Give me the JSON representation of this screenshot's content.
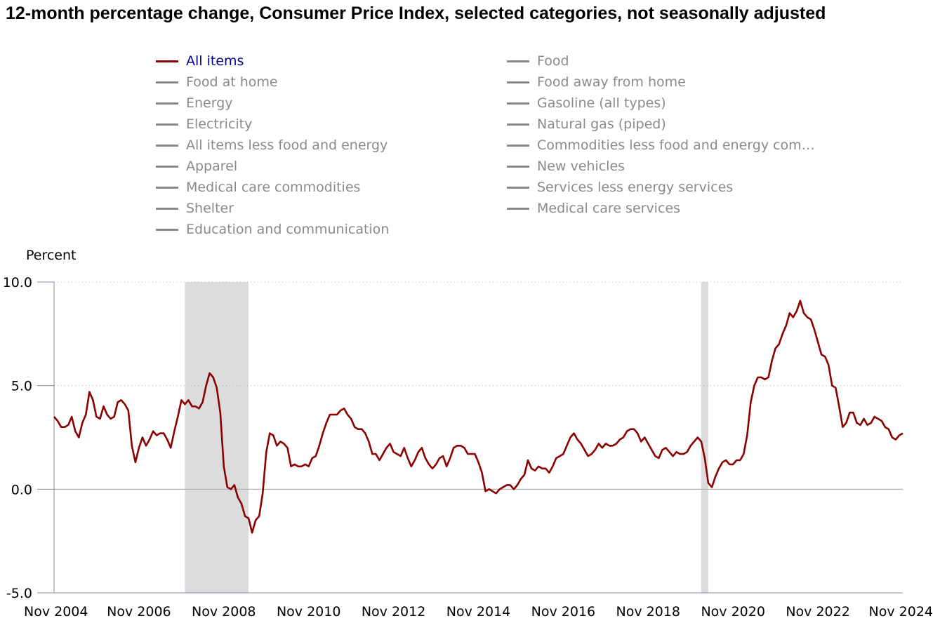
{
  "title": "12-month percentage change, Consumer Price Index, selected categories, not seasonally adjusted",
  "legend": [
    {
      "label": "All items",
      "active": true
    },
    {
      "label": "Food",
      "active": false
    },
    {
      "label": "Food at home",
      "active": false
    },
    {
      "label": "Food away from home",
      "active": false
    },
    {
      "label": "Energy",
      "active": false
    },
    {
      "label": "Gasoline (all types)",
      "active": false
    },
    {
      "label": "Electricity",
      "active": false
    },
    {
      "label": "Natural gas (piped)",
      "active": false
    },
    {
      "label": "All items less food and energy",
      "active": false
    },
    {
      "label": "Commodities less food and energy com…",
      "active": false
    },
    {
      "label": "Apparel",
      "active": false
    },
    {
      "label": "New vehicles",
      "active": false
    },
    {
      "label": "Medical care commodities",
      "active": false
    },
    {
      "label": "Services less energy services",
      "active": false
    },
    {
      "label": "Shelter",
      "active": false
    },
    {
      "label": "Medical care services",
      "active": false
    },
    {
      "label": "Education and communication",
      "active": false
    }
  ],
  "colors": {
    "series": "#8b0000",
    "recession": "#dcdcdc",
    "legend_inactive": "#888888",
    "legend_active_text": "#00008b"
  },
  "chart_data": {
    "type": "line",
    "title": "12-month percentage change, Consumer Price Index, selected categories, not seasonally adjusted",
    "ylabel": "Percent",
    "xlabel": "",
    "ylim": [
      -5.0,
      10.0
    ],
    "yticks": [
      "10.0",
      "5.0",
      "0.0",
      "-5.0"
    ],
    "ytick_values": [
      10,
      5,
      0,
      -5
    ],
    "xticks": [
      "Nov 2004",
      "Nov 2006",
      "Nov 2008",
      "Nov 2010",
      "Nov 2012",
      "Nov 2014",
      "Nov 2016",
      "Nov 2018",
      "Nov 2020",
      "Nov 2022",
      "Nov 2024"
    ],
    "x_start": "Nov 2004",
    "x_end": "Nov 2024",
    "grid": "horizontal dotted",
    "legend_position": "top",
    "recessions": [
      [
        "Dec 2007",
        "Jun 2009"
      ],
      [
        "Feb 2020",
        "Apr 2020"
      ]
    ],
    "series": [
      {
        "name": "All items",
        "values": [
          3.5,
          3.3,
          3.0,
          3.0,
          3.1,
          3.5,
          2.8,
          2.5,
          3.2,
          3.6,
          4.7,
          4.3,
          3.5,
          3.4,
          4.0,
          3.6,
          3.4,
          3.5,
          4.2,
          4.3,
          4.1,
          3.8,
          2.1,
          1.3,
          2.0,
          2.5,
          2.1,
          2.4,
          2.8,
          2.6,
          2.7,
          2.7,
          2.4,
          2.0,
          2.8,
          3.5,
          4.3,
          4.1,
          4.3,
          4.0,
          4.0,
          3.9,
          4.2,
          5.0,
          5.6,
          5.4,
          4.9,
          3.7,
          1.1,
          0.1,
          0.0,
          0.2,
          -0.4,
          -0.7,
          -1.3,
          -1.4,
          -2.1,
          -1.5,
          -1.3,
          -0.2,
          1.8,
          2.7,
          2.6,
          2.1,
          2.3,
          2.2,
          2.0,
          1.1,
          1.2,
          1.1,
          1.1,
          1.2,
          1.1,
          1.5,
          1.6,
          2.1,
          2.7,
          3.2,
          3.6,
          3.6,
          3.6,
          3.8,
          3.9,
          3.6,
          3.4,
          3.0,
          2.9,
          2.9,
          2.7,
          2.3,
          1.7,
          1.7,
          1.4,
          1.7,
          2.0,
          2.2,
          1.8,
          1.7,
          1.6,
          2.0,
          1.5,
          1.1,
          1.4,
          1.8,
          2.0,
          1.5,
          1.2,
          1.0,
          1.2,
          1.5,
          1.6,
          1.1,
          1.5,
          2.0,
          2.1,
          2.1,
          2.0,
          1.7,
          1.7,
          1.7,
          1.3,
          0.8,
          -0.1,
          0.0,
          -0.1,
          -0.2,
          0.0,
          0.1,
          0.2,
          0.2,
          0.0,
          0.2,
          0.5,
          0.7,
          1.4,
          1.0,
          0.9,
          1.1,
          1.0,
          1.0,
          0.8,
          1.1,
          1.5,
          1.6,
          1.7,
          2.1,
          2.5,
          2.7,
          2.4,
          2.2,
          1.9,
          1.6,
          1.7,
          1.9,
          2.2,
          2.0,
          2.2,
          2.1,
          2.1,
          2.2,
          2.4,
          2.5,
          2.8,
          2.9,
          2.9,
          2.7,
          2.3,
          2.5,
          2.2,
          1.9,
          1.6,
          1.5,
          1.9,
          2.0,
          1.8,
          1.6,
          1.8,
          1.7,
          1.7,
          1.8,
          2.1,
          2.3,
          2.5,
          2.3,
          1.5,
          0.3,
          0.1,
          0.6,
          1.0,
          1.3,
          1.4,
          1.2,
          1.2,
          1.4,
          1.4,
          1.7,
          2.6,
          4.2,
          5.0,
          5.4,
          5.4,
          5.3,
          5.4,
          6.2,
          6.8,
          7.0,
          7.5,
          7.9,
          8.5,
          8.3,
          8.6,
          9.1,
          8.5,
          8.3,
          8.2,
          7.7,
          7.1,
          6.5,
          6.4,
          6.0,
          5.0,
          4.9,
          4.0,
          3.0,
          3.2,
          3.7,
          3.7,
          3.2,
          3.1,
          3.4,
          3.1,
          3.2,
          3.5,
          3.4,
          3.3,
          3.0,
          2.9,
          2.5,
          2.4,
          2.6,
          2.7
        ]
      }
    ]
  }
}
